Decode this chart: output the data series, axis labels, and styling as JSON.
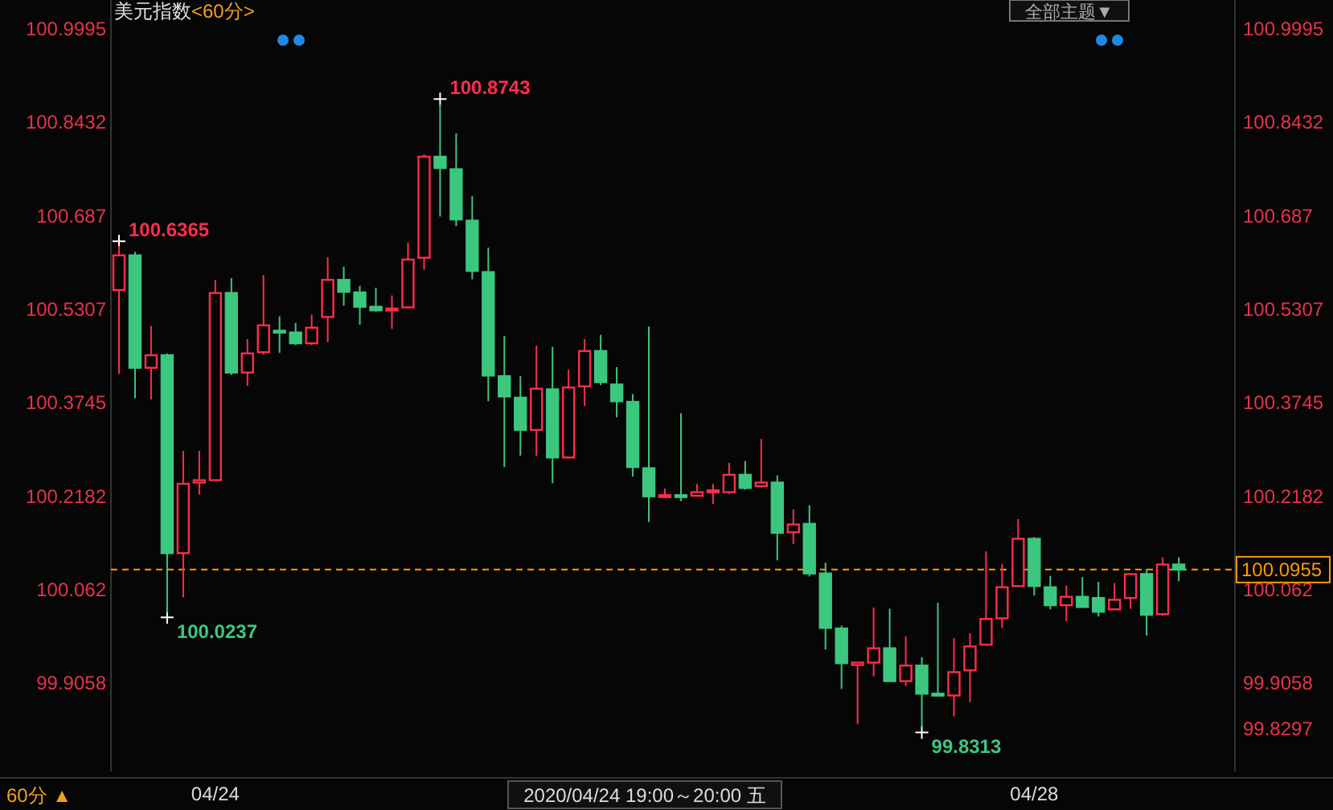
{
  "chart_data": {
    "type": "candlestick",
    "title": "美元指数",
    "subtitle": "<60分>",
    "categories": [
      null,
      null,
      null,
      null,
      null,
      null,
      "04/24",
      null,
      null,
      null,
      null,
      null,
      null,
      null,
      null,
      null,
      null,
      null,
      null,
      null,
      null,
      null,
      null,
      null,
      null,
      null,
      null,
      null,
      null,
      null,
      null,
      null,
      null,
      null,
      null,
      null,
      null,
      null,
      null,
      null,
      null,
      null,
      null,
      null,
      null,
      null,
      null,
      null,
      null,
      null,
      null,
      null,
      null,
      null,
      null,
      null,
      null,
      "04/28",
      null,
      null,
      null,
      null,
      null,
      null,
      null,
      null,
      null
    ],
    "ohlc": [
      [
        100.563,
        100.6365,
        100.423,
        100.621
      ],
      [
        100.621,
        100.627,
        100.382,
        100.433
      ],
      [
        100.433,
        100.503,
        100.38,
        100.454
      ],
      [
        100.454,
        100.457,
        100.0237,
        100.123
      ],
      [
        100.123,
        100.294,
        100.049,
        100.239
      ],
      [
        100.241,
        100.294,
        100.221,
        100.245
      ],
      [
        100.245,
        100.58,
        100.245,
        100.558
      ],
      [
        100.558,
        100.583,
        100.421,
        100.425
      ],
      [
        100.425,
        100.481,
        100.403,
        100.457
      ],
      [
        100.459,
        100.588,
        100.455,
        100.504
      ],
      [
        100.495,
        100.519,
        100.458,
        100.494
      ],
      [
        100.492,
        100.508,
        100.471,
        100.474
      ],
      [
        100.474,
        100.522,
        100.471,
        100.5
      ],
      [
        100.518,
        100.618,
        100.476,
        100.58
      ],
      [
        100.58,
        100.602,
        100.537,
        100.56
      ],
      [
        100.559,
        100.57,
        100.505,
        100.535
      ],
      [
        100.535,
        100.567,
        100.527,
        100.529
      ],
      [
        100.53,
        100.554,
        100.498,
        100.532
      ],
      [
        100.534,
        100.642,
        100.534,
        100.614
      ],
      [
        100.617,
        100.79,
        100.597,
        100.786
      ],
      [
        100.786,
        100.8743,
        100.686,
        100.767
      ],
      [
        100.765,
        100.825,
        100.67,
        100.681
      ],
      [
        100.679,
        100.72,
        100.581,
        100.595
      ],
      [
        100.593,
        100.634,
        100.377,
        100.42
      ],
      [
        100.419,
        100.486,
        100.267,
        100.385
      ],
      [
        100.383,
        100.419,
        100.286,
        100.329
      ],
      [
        100.329,
        100.47,
        100.286,
        100.398
      ],
      [
        100.397,
        100.468,
        100.24,
        100.283
      ],
      [
        100.283,
        100.43,
        100.283,
        100.4
      ],
      [
        100.402,
        100.481,
        100.369,
        100.461
      ],
      [
        100.461,
        100.488,
        100.404,
        100.409
      ],
      [
        100.405,
        100.434,
        100.35,
        100.377
      ],
      [
        100.376,
        100.389,
        100.251,
        100.267
      ],
      [
        100.265,
        100.502,
        100.175,
        100.218
      ],
      [
        100.217,
        100.231,
        100.217,
        100.22
      ],
      [
        100.22,
        100.357,
        100.21,
        100.217
      ],
      [
        100.219,
        100.239,
        100.219,
        100.225
      ],
      [
        100.225,
        100.239,
        100.205,
        100.228
      ],
      [
        100.225,
        100.274,
        100.222,
        100.254
      ],
      [
        100.254,
        100.277,
        100.229,
        100.232
      ],
      [
        100.235,
        100.314,
        100.233,
        100.241
      ],
      [
        100.241,
        100.253,
        100.111,
        100.157
      ],
      [
        100.158,
        100.196,
        100.138,
        100.171
      ],
      [
        100.172,
        100.203,
        100.084,
        100.089
      ],
      [
        100.089,
        100.107,
        99.962,
        99.998
      ],
      [
        99.997,
        100.002,
        99.896,
        99.939
      ],
      [
        99.936,
        99.94,
        99.837,
        99.94
      ],
      [
        99.94,
        100.032,
        99.917,
        99.964
      ],
      [
        99.964,
        100.03,
        99.909,
        99.909
      ],
      [
        99.909,
        99.984,
        99.901,
        99.935
      ],
      [
        99.935,
        99.949,
        99.8313,
        99.888
      ],
      [
        99.888,
        100.04,
        99.885,
        99.885
      ],
      [
        99.885,
        99.981,
        99.85,
        99.924
      ],
      [
        99.927,
        99.989,
        99.874,
        99.967
      ],
      [
        99.97,
        100.126,
        99.97,
        100.013
      ],
      [
        100.014,
        100.105,
        99.998,
        100.066
      ],
      [
        100.068,
        100.18,
        100.068,
        100.147
      ],
      [
        100.147,
        100.15,
        100.052,
        100.068
      ],
      [
        100.066,
        100.085,
        100.029,
        100.036
      ],
      [
        100.036,
        100.069,
        100.009,
        100.05
      ],
      [
        100.05,
        100.083,
        100.033,
        100.033
      ],
      [
        100.048,
        100.075,
        100.017,
        100.025
      ],
      [
        100.029,
        100.073,
        100.029,
        100.045
      ],
      [
        100.048,
        100.088,
        100.03,
        100.088
      ],
      [
        100.088,
        100.096,
        99.985,
        100.02
      ],
      [
        100.021,
        100.116,
        100.018,
        100.104
      ],
      [
        100.104,
        100.116,
        100.076,
        100.0955
      ]
    ],
    "colors": [
      "#ff2d4b",
      "#3cc77f",
      "#ff2d4b",
      "#3cc77f",
      "#ff2d4b",
      "#ff2d4b",
      "#ff2d4b",
      "#3cc77f",
      "#ff2d4b",
      "#ff2d4b",
      "#3cc77f",
      "#3cc77f",
      "#ff2d4b",
      "#ff2d4b",
      "#3cc77f",
      "#3cc77f",
      "#3cc77f",
      "#ff2d4b",
      "#ff2d4b",
      "#ff2d4b",
      "#3cc77f",
      "#3cc77f",
      "#3cc77f",
      "#3cc77f",
      "#3cc77f",
      "#3cc77f",
      "#ff2d4b",
      "#3cc77f",
      "#ff2d4b",
      "#ff2d4b",
      "#3cc77f",
      "#3cc77f",
      "#3cc77f",
      "#3cc77f",
      "#ff2d4b",
      "#3cc77f",
      "#ff2d4b",
      "#ff2d4b",
      "#ff2d4b",
      "#3cc77f",
      "#ff2d4b",
      "#3cc77f",
      "#ff2d4b",
      "#3cc77f",
      "#3cc77f",
      "#3cc77f",
      "#ff2d4b",
      "#ff2d4b",
      "#3cc77f",
      "#ff2d4b",
      "#3cc77f",
      "#3cc77f",
      "#ff2d4b",
      "#ff2d4b",
      "#ff2d4b",
      "#ff2d4b",
      "#ff2d4b",
      "#3cc77f",
      "#3cc77f",
      "#ff2d4b",
      "#3cc77f",
      "#3cc77f",
      "#ff2d4b",
      "#ff2d4b",
      "#3cc77f",
      "#ff2d4b",
      "#3cc77f"
    ],
    "ylim": [
      99.758,
      101.048
    ],
    "yticks": [
      99.9058,
      100.062,
      100.2182,
      100.3745,
      100.5307,
      100.687,
      100.8432,
      100.9995
    ],
    "y2lim": [
      99.758,
      101.048
    ],
    "y2ticks": [
      99.8297,
      99.9058,
      100.062,
      100.2182,
      100.3745,
      100.5307,
      100.687,
      100.8432,
      100.9995
    ],
    "ref_lines": [
      {
        "axis": "y",
        "value": 100.0955,
        "label": "100.0955",
        "color": "#ff9900",
        "line_style": "dashed"
      }
    ],
    "annotations": [
      "100.6365",
      "100.0237",
      "100.8743",
      "99.8313",
      "60分 ▲",
      "2020/04/24 19:00～20:00 五",
      "全部主题▼"
    ]
  }
}
